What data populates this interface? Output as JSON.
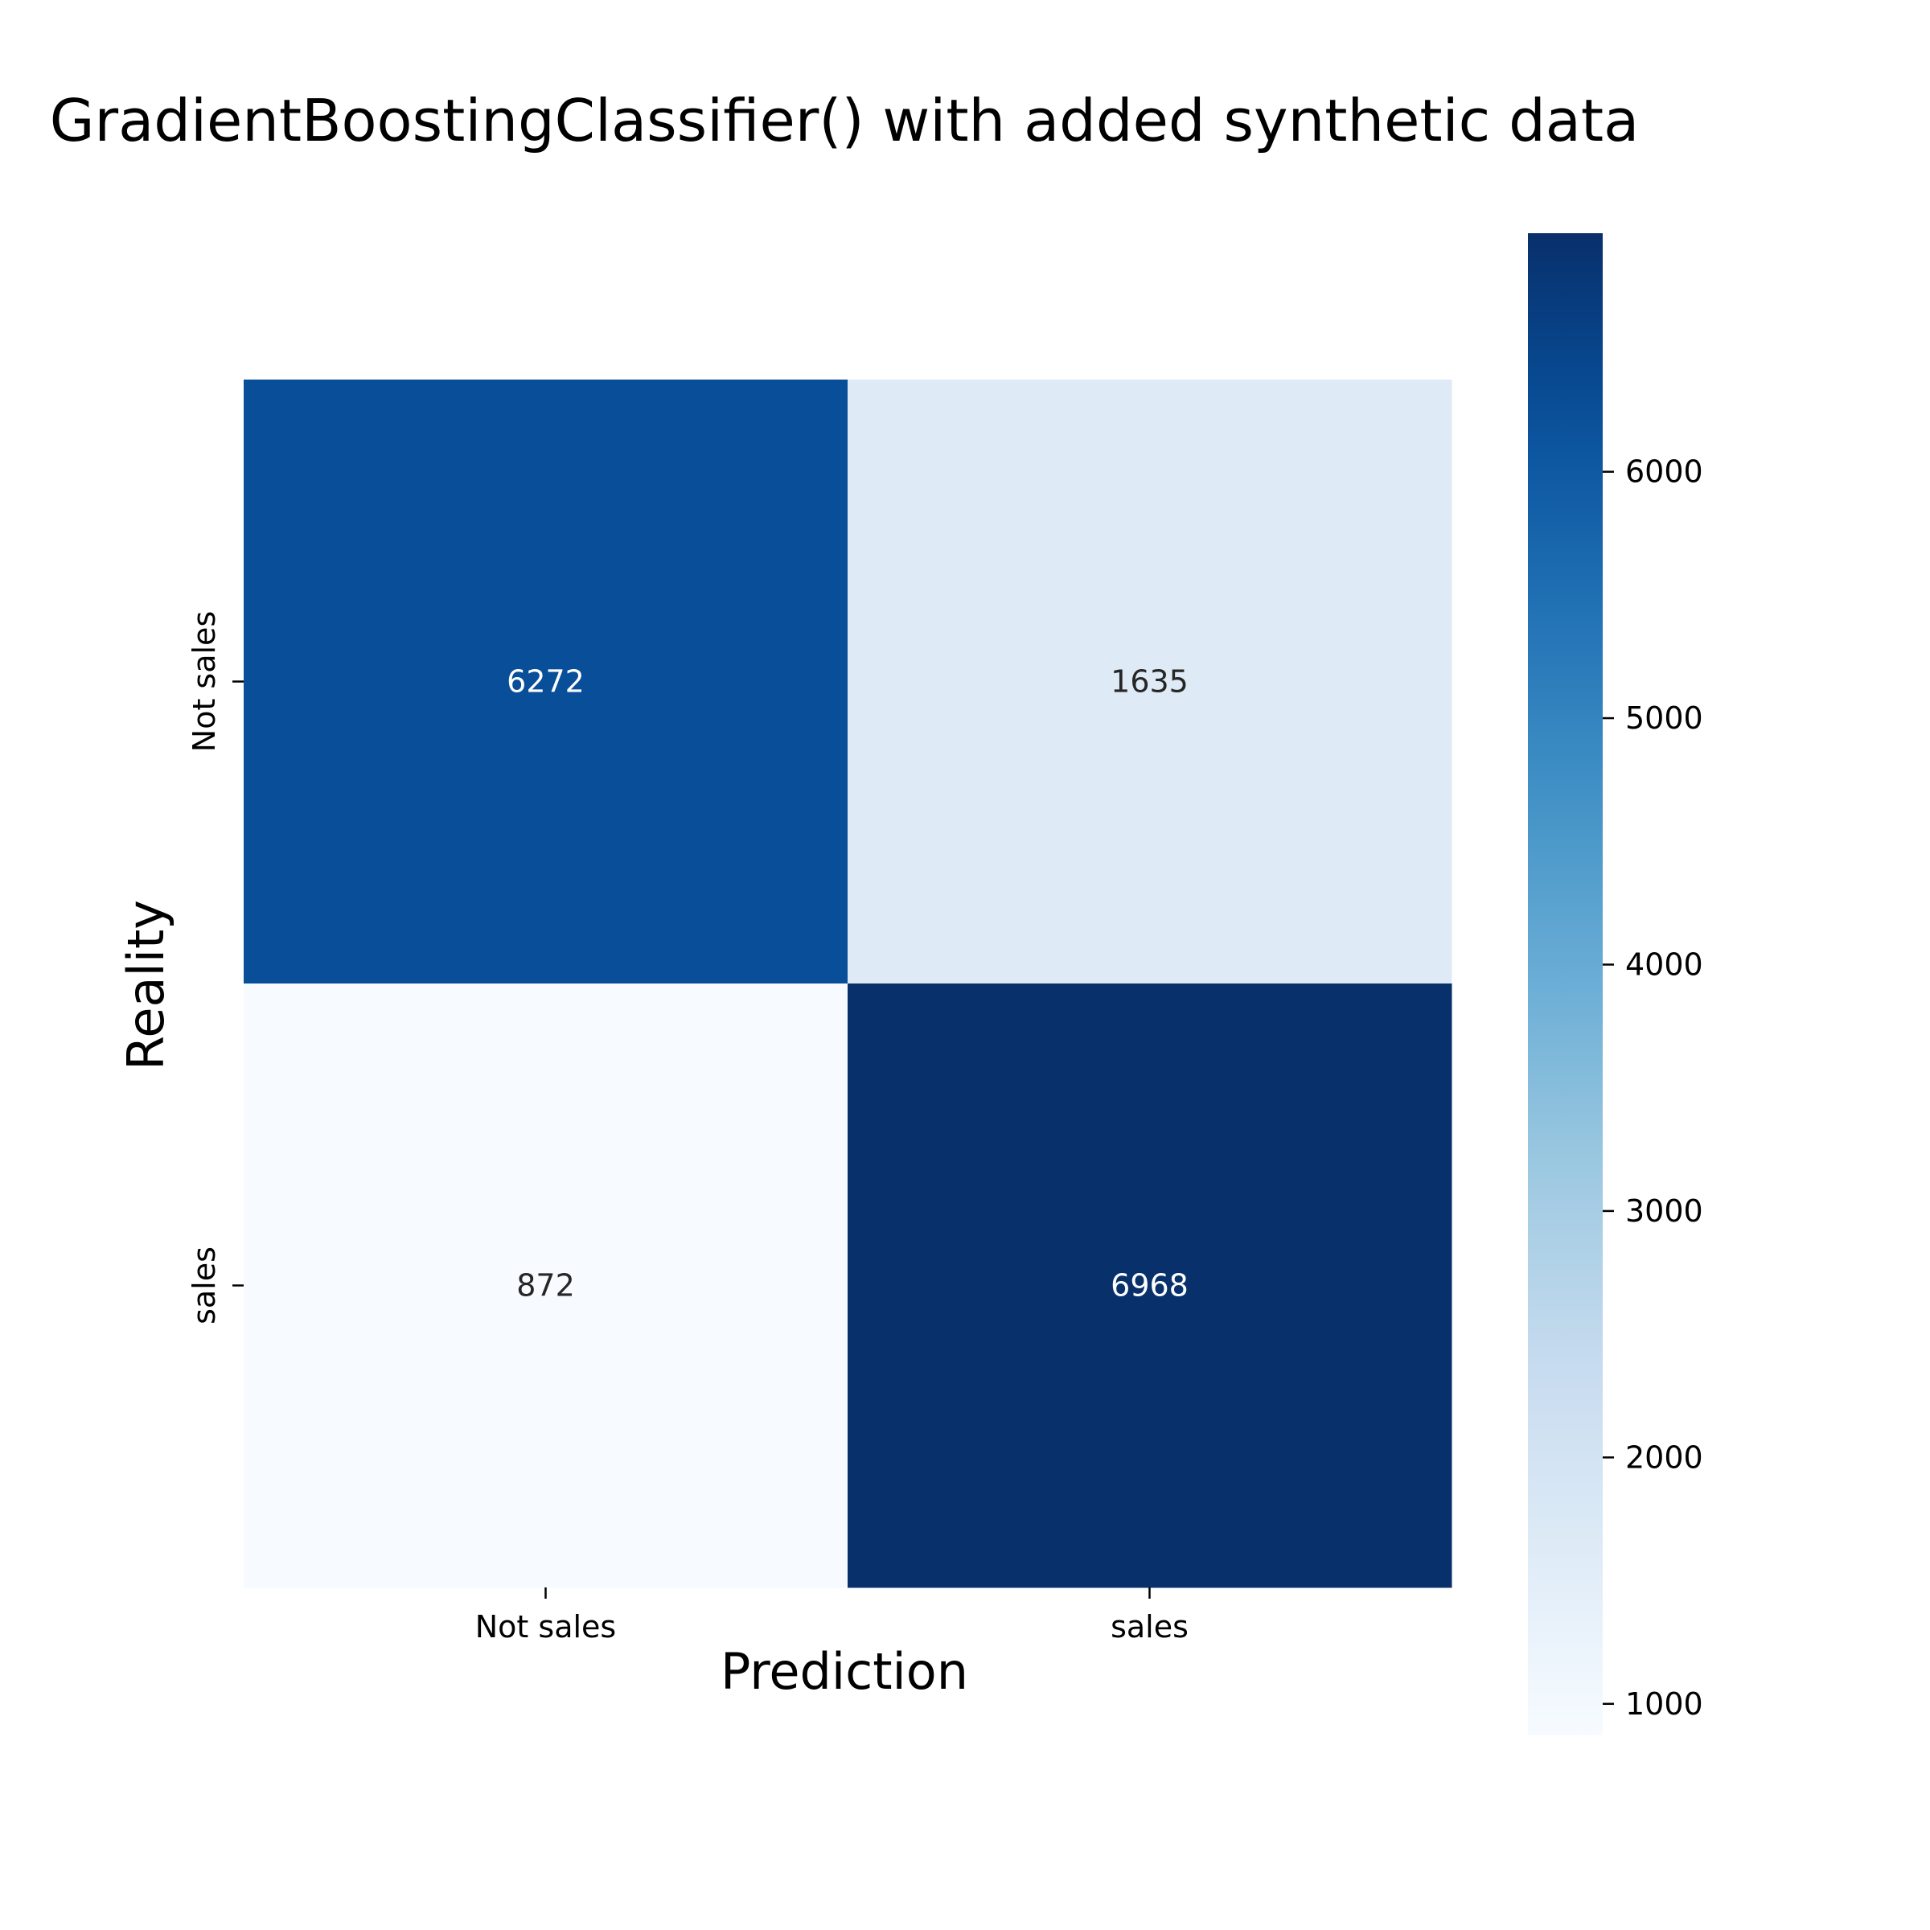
{
  "chart_data": {
    "type": "heatmap",
    "title": "GradientBoostingClassifier() with added synthetic data",
    "xlabel": "Prediction",
    "ylabel": "Reality",
    "x_categories": [
      "Not sales",
      "sales"
    ],
    "y_categories": [
      "Not sales",
      "sales"
    ],
    "values": [
      [
        6272,
        1635
      ],
      [
        872,
        6968
      ]
    ],
    "colormap": "Blues",
    "colorbar": {
      "min": 872,
      "max": 6968,
      "ticks": [
        1000,
        2000,
        3000,
        4000,
        5000,
        6000
      ],
      "tick_labels": [
        "1000",
        "2000",
        "3000",
        "4000",
        "5000",
        "6000"
      ]
    },
    "grid": false,
    "legend": "colorbar-right"
  }
}
